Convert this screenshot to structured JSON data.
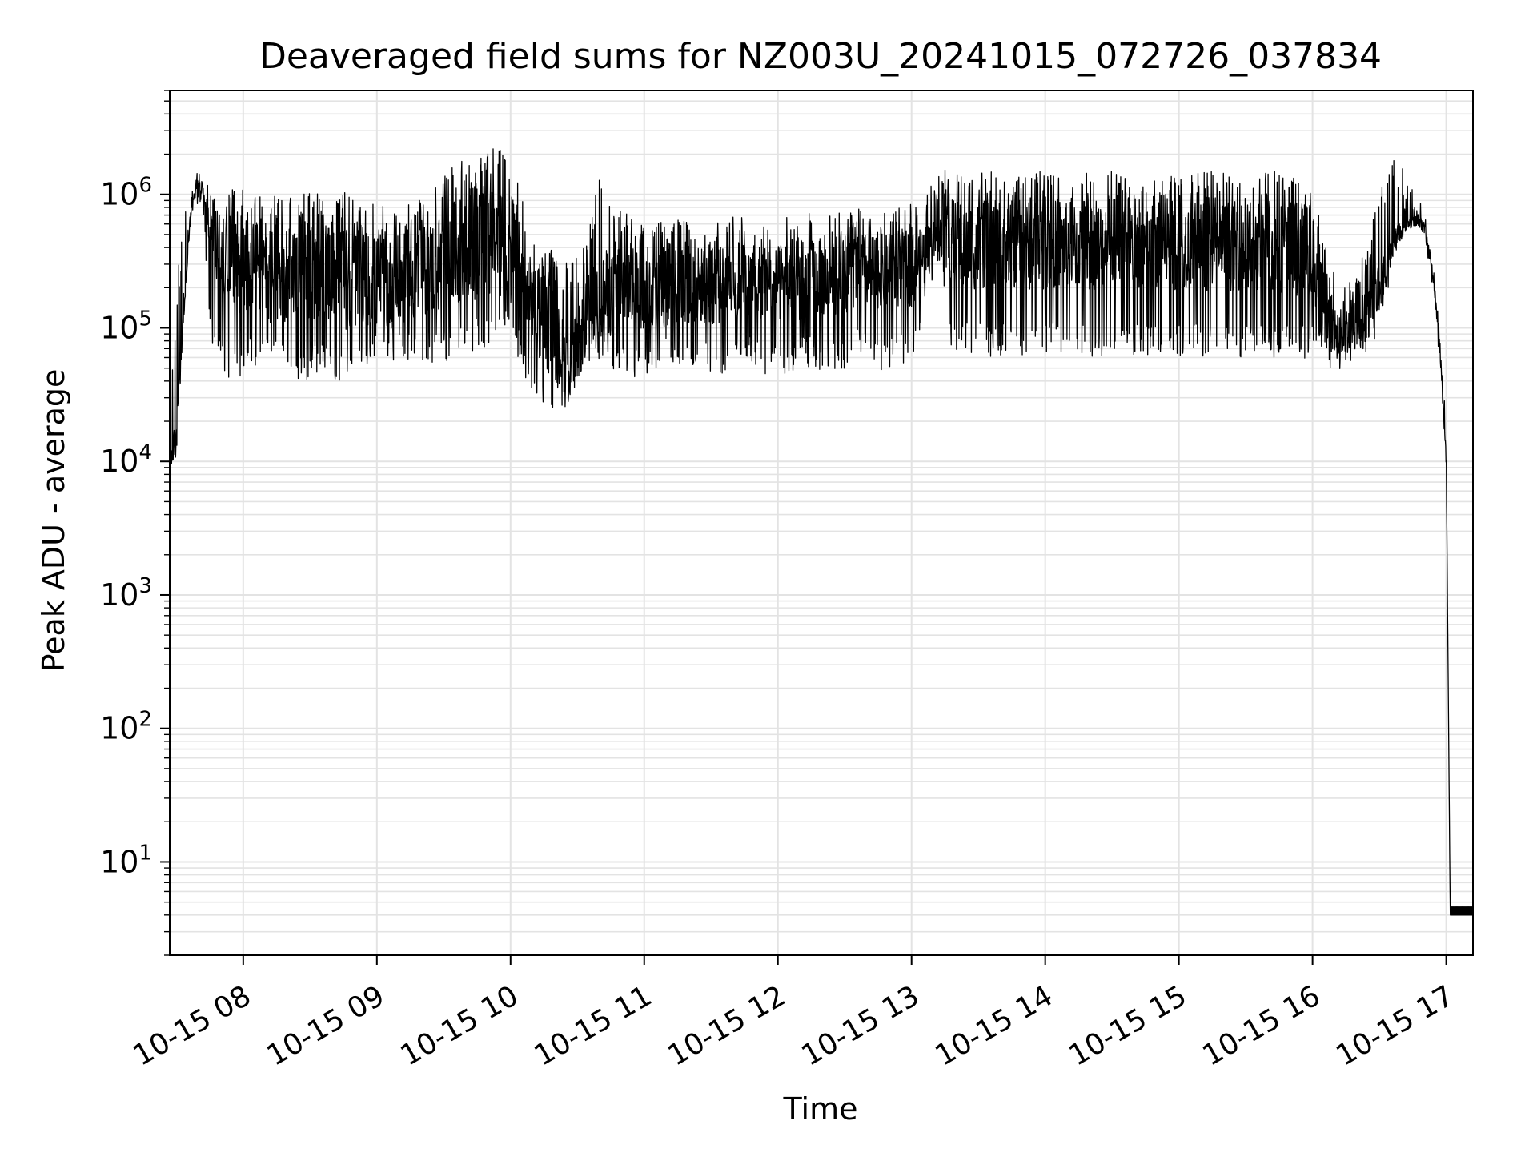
{
  "chart_data": {
    "type": "line",
    "title": "Deaveraged field sums for NZ003U_20241015_072726_037834",
    "xlabel": "Time",
    "ylabel": "Peak ADU - average",
    "yscale": "log",
    "grid": true,
    "grid_minor": true,
    "line_color": "#000000",
    "grid_color": "#e3e3e3",
    "xlim": [
      "10-15 07:27",
      "10-15 17:12"
    ],
    "ylim": [
      2,
      6000000
    ],
    "x_ticks": [
      "10-15 08",
      "10-15 09",
      "10-15 10",
      "10-15 11",
      "10-15 12",
      "10-15 13",
      "10-15 14",
      "10-15 15",
      "10-15 16",
      "10-15 17"
    ],
    "y_ticks": [
      {
        "base": "10",
        "exp": "1"
      },
      {
        "base": "10",
        "exp": "2"
      },
      {
        "base": "10",
        "exp": "3"
      },
      {
        "base": "10",
        "exp": "4"
      },
      {
        "base": "10",
        "exp": "5"
      },
      {
        "base": "10",
        "exp": "6"
      }
    ],
    "series": [
      {
        "x_hours": [
          7.45,
          7.5,
          7.55,
          7.6,
          7.65,
          7.7,
          7.75,
          7.8,
          7.85,
          7.9,
          7.95,
          8.0,
          8.1,
          8.2,
          8.3,
          8.4,
          8.5,
          8.6,
          8.7,
          8.8,
          8.9,
          9.0,
          9.1,
          9.2,
          9.3,
          9.4,
          9.5,
          9.6,
          9.7,
          9.8,
          9.9,
          10.0,
          10.1,
          10.2,
          10.3,
          10.4,
          10.5,
          10.6,
          10.7,
          10.8,
          10.9,
          11.0,
          11.1,
          11.2,
          11.3,
          11.4,
          11.5,
          11.6,
          11.7,
          11.8,
          11.9,
          12.0,
          12.1,
          12.2,
          12.3,
          12.4,
          12.5,
          12.6,
          12.7,
          12.8,
          12.9,
          13.0,
          13.1,
          13.2,
          13.3,
          13.4,
          13.5,
          13.6,
          13.7,
          13.8,
          13.9,
          14.0,
          14.1,
          14.2,
          14.3,
          14.4,
          14.5,
          14.6,
          14.7,
          14.8,
          14.9,
          15.0,
          15.1,
          15.2,
          15.3,
          15.4,
          15.5,
          15.6,
          15.7,
          15.8,
          15.9,
          16.0,
          16.1,
          16.2,
          16.3,
          16.4,
          16.5,
          16.6,
          16.7,
          16.8,
          16.85,
          16.9,
          16.95,
          17.0,
          17.03,
          17.1,
          17.2
        ],
        "y_center": [
          10000,
          15000,
          100000,
          600000,
          1200000,
          1100000,
          500000,
          400000,
          350000,
          350000,
          300000,
          280000,
          300000,
          250000,
          260000,
          270000,
          260000,
          260000,
          250000,
          230000,
          240000,
          220000,
          210000,
          230000,
          250000,
          280000,
          300000,
          360000,
          400000,
          430000,
          460000,
          450000,
          200000,
          120000,
          100000,
          60000,
          70000,
          150000,
          180000,
          200000,
          210000,
          190000,
          200000,
          210000,
          220000,
          210000,
          200000,
          210000,
          220000,
          230000,
          220000,
          210000,
          220000,
          230000,
          240000,
          230000,
          250000,
          260000,
          270000,
          260000,
          270000,
          280000,
          350000,
          500000,
          450000,
          400000,
          420000,
          410000,
          430000,
          420000,
          410000,
          420000,
          430000,
          420000,
          410000,
          420000,
          430000,
          420000,
          410000,
          420000,
          410000,
          420000,
          430000,
          410000,
          420000,
          410000,
          420000,
          400000,
          410000,
          400000,
          390000,
          380000,
          120000,
          90000,
          100000,
          120000,
          200000,
          400000,
          600000,
          650000,
          500000,
          250000,
          80000,
          10000,
          4,
          4,
          4
        ],
        "y_low": [
          8000,
          8000,
          90000,
          500000,
          900000,
          800000,
          90000,
          60000,
          45000,
          40000,
          42000,
          45000,
          50000,
          45000,
          45000,
          42000,
          40000,
          45000,
          40000,
          42000,
          50000,
          55000,
          55000,
          60000,
          55000,
          50000,
          55000,
          60000,
          65000,
          70000,
          80000,
          90000,
          40000,
          30000,
          25000,
          22000,
          25000,
          50000,
          55000,
          45000,
          40000,
          45000,
          45000,
          50000,
          50000,
          48000,
          42000,
          45000,
          50000,
          48000,
          45000,
          40000,
          45000,
          50000,
          48000,
          45000,
          50000,
          55000,
          50000,
          48000,
          50000,
          50000,
          150000,
          300000,
          70000,
          65000,
          65000,
          60000,
          62000,
          62000,
          60000,
          60000,
          62000,
          60000,
          62000,
          60000,
          62000,
          60000,
          60000,
          58000,
          60000,
          62000,
          60000,
          60000,
          58000,
          60000,
          60000,
          60000,
          58000,
          60000,
          60000,
          58000,
          50000,
          45000,
          48000,
          55000,
          90000,
          300000,
          500000,
          550000,
          400000,
          200000,
          60000,
          8000,
          4,
          4,
          4
        ],
        "y_high": [
          20000,
          200000,
          700000,
          1400000,
          1450000,
          1300000,
          1200000,
          1200000,
          1150000,
          1100000,
          1150000,
          1100000,
          1100000,
          1050000,
          1100000,
          1100000,
          1050000,
          1000000,
          1100000,
          1000000,
          900000,
          850000,
          800000,
          850000,
          950000,
          1100000,
          1400000,
          1700000,
          1900000,
          2000000,
          2500000,
          2200000,
          800000,
          400000,
          400000,
          300000,
          350000,
          800000,
          1800000,
          900000,
          700000,
          600000,
          650000,
          700000,
          700000,
          650000,
          600000,
          650000,
          700000,
          700000,
          650000,
          650000,
          700000,
          750000,
          750000,
          700000,
          750000,
          800000,
          800000,
          780000,
          800000,
          850000,
          900000,
          1600000,
          1500000,
          1500000,
          1500000,
          1500000,
          1500000,
          1500000,
          1500000,
          1500000,
          1500000,
          1500000,
          1500000,
          1500000,
          1500000,
          1500000,
          1500000,
          1500000,
          1500000,
          1500000,
          1500000,
          1500000,
          1500000,
          1500000,
          1500000,
          1500000,
          1500000,
          1500000,
          1500000,
          1400000,
          400000,
          200000,
          250000,
          400000,
          1000000,
          2000000,
          1500000,
          900000,
          700000,
          300000,
          100000,
          20000,
          5,
          5,
          5
        ]
      }
    ]
  }
}
